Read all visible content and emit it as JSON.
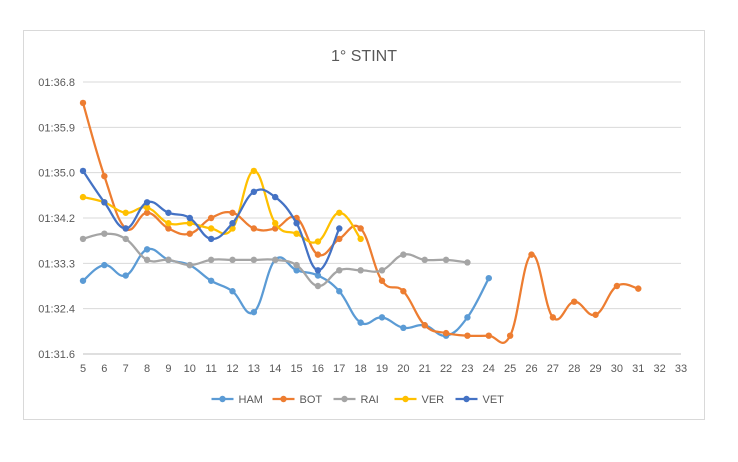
{
  "chart_data": {
    "type": "line",
    "title": "1° STINT",
    "xlabel": "",
    "ylabel": "",
    "x_ticks": [
      5,
      6,
      7,
      8,
      9,
      10,
      11,
      12,
      13,
      14,
      15,
      16,
      17,
      18,
      19,
      20,
      21,
      22,
      23,
      24,
      25,
      26,
      27,
      28,
      29,
      30,
      31,
      32,
      33
    ],
    "y_ticks": [
      "01:31.6",
      "01:32.4",
      "01:33.3",
      "01:34.2",
      "01:35.0",
      "01:35.9",
      "01:36.8"
    ],
    "y_range_seconds": [
      91.6,
      96.8
    ],
    "x_range": [
      5,
      33
    ],
    "grid": "horizontal",
    "legend_position": "bottom",
    "series": [
      {
        "name": "HAM",
        "color": "#5b9bd5",
        "points": [
          [
            5,
            93.0
          ],
          [
            6,
            93.3
          ],
          [
            7,
            93.1
          ],
          [
            8,
            93.6
          ],
          [
            9,
            93.4
          ],
          [
            10,
            93.3
          ],
          [
            11,
            93.0
          ],
          [
            12,
            92.8
          ],
          [
            13,
            92.4
          ],
          [
            14,
            93.4
          ],
          [
            15,
            93.2
          ],
          [
            16,
            93.1
          ],
          [
            17,
            92.8
          ],
          [
            18,
            92.2
          ],
          [
            19,
            92.3
          ],
          [
            20,
            92.1
          ],
          [
            21,
            92.15
          ],
          [
            22,
            91.95
          ],
          [
            23,
            92.3
          ],
          [
            24,
            93.05
          ]
        ]
      },
      {
        "name": "BOT",
        "color": "#ed7d31",
        "points": [
          [
            5,
            96.4
          ],
          [
            6,
            95.0
          ],
          [
            7,
            94.0
          ],
          [
            8,
            94.3
          ],
          [
            9,
            94.0
          ],
          [
            10,
            93.9
          ],
          [
            11,
            94.2
          ],
          [
            12,
            94.3
          ],
          [
            13,
            94.0
          ],
          [
            14,
            94.0
          ],
          [
            15,
            94.2
          ],
          [
            16,
            93.5
          ],
          [
            17,
            93.8
          ],
          [
            18,
            94.0
          ],
          [
            19,
            93.0
          ],
          [
            20,
            92.8
          ],
          [
            21,
            92.15
          ],
          [
            22,
            92.0
          ],
          [
            23,
            91.95
          ],
          [
            24,
            91.95
          ],
          [
            25,
            91.95
          ],
          [
            26,
            93.5
          ],
          [
            27,
            92.3
          ],
          [
            28,
            92.6
          ],
          [
            29,
            92.35
          ],
          [
            30,
            92.9
          ],
          [
            31,
            92.85
          ]
        ]
      },
      {
        "name": "RAI",
        "color": "#a5a5a5",
        "points": [
          [
            5,
            93.8
          ],
          [
            6,
            93.9
          ],
          [
            7,
            93.8
          ],
          [
            8,
            93.4
          ],
          [
            9,
            93.4
          ],
          [
            10,
            93.3
          ],
          [
            11,
            93.4
          ],
          [
            12,
            93.4
          ],
          [
            13,
            93.4
          ],
          [
            14,
            93.4
          ],
          [
            15,
            93.3
          ],
          [
            16,
            92.9
          ],
          [
            17,
            93.2
          ],
          [
            18,
            93.2
          ],
          [
            19,
            93.2
          ],
          [
            20,
            93.5
          ],
          [
            21,
            93.4
          ],
          [
            22,
            93.4
          ],
          [
            23,
            93.35
          ]
        ]
      },
      {
        "name": "VER",
        "color": "#ffc000",
        "points": [
          [
            5,
            94.6
          ],
          [
            6,
            94.5
          ],
          [
            7,
            94.3
          ],
          [
            8,
            94.4
          ],
          [
            9,
            94.1
          ],
          [
            10,
            94.1
          ],
          [
            11,
            94.0
          ],
          [
            12,
            94.0
          ],
          [
            13,
            95.1
          ],
          [
            14,
            94.1
          ],
          [
            15,
            93.9
          ],
          [
            16,
            93.75
          ],
          [
            17,
            94.3
          ],
          [
            18,
            93.8
          ]
        ]
      },
      {
        "name": "VET",
        "color": "#4472c4",
        "points": [
          [
            5,
            95.1
          ],
          [
            6,
            94.5
          ],
          [
            7,
            94.0
          ],
          [
            8,
            94.5
          ],
          [
            9,
            94.3
          ],
          [
            10,
            94.2
          ],
          [
            11,
            93.8
          ],
          [
            12,
            94.1
          ],
          [
            13,
            94.7
          ],
          [
            14,
            94.6
          ],
          [
            15,
            94.1
          ],
          [
            16,
            93.2
          ],
          [
            17,
            94.0
          ]
        ]
      }
    ]
  }
}
